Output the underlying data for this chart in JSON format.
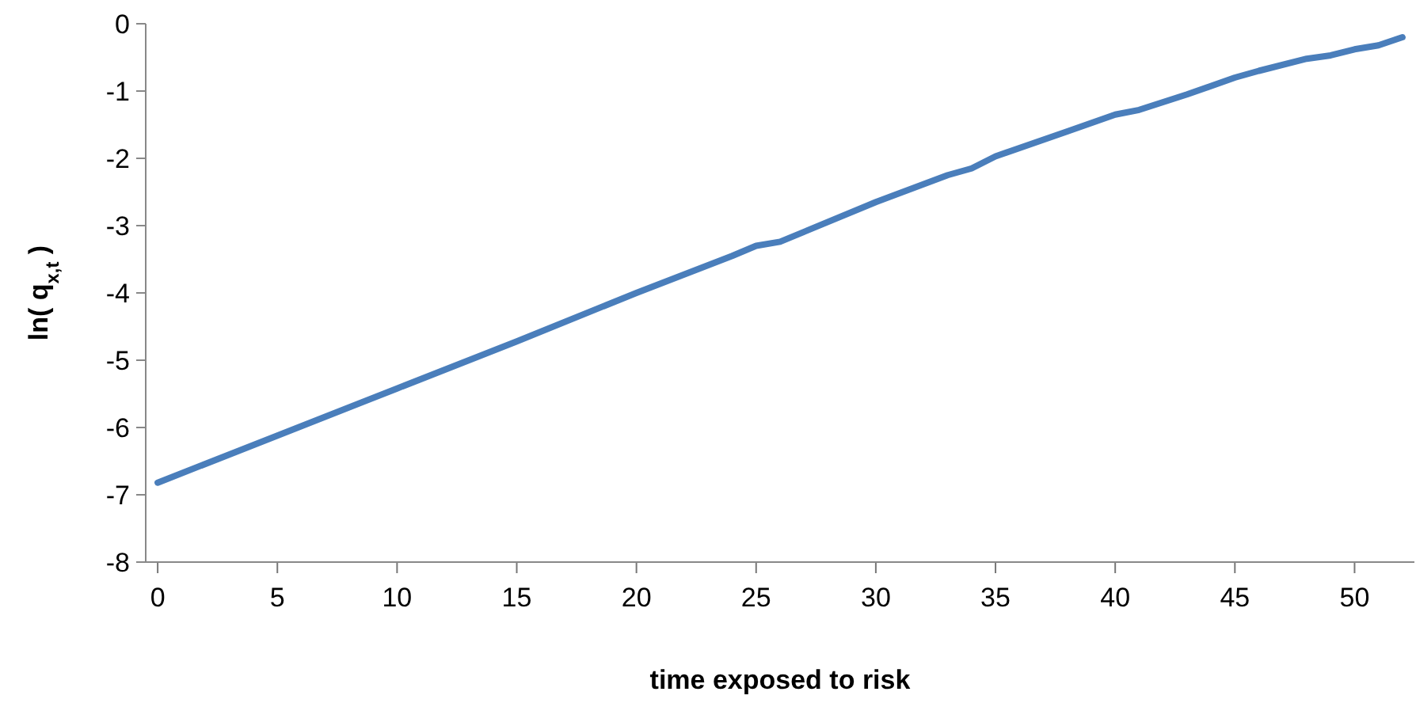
{
  "chart_data": {
    "type": "line",
    "xlabel": "time exposed to risk",
    "ylabel": "ln( q$_{x,t}$ )",
    "series": [
      {
        "color": "#4a7ebb",
        "x": [
          0,
          5,
          10,
          15,
          20,
          24,
          25,
          26,
          30,
          33,
          34,
          35,
          38,
          40,
          41,
          43,
          45,
          46,
          48,
          49,
          50,
          51,
          52
        ],
        "values": [
          -6.82,
          -6.12,
          -5.42,
          -4.72,
          -4.0,
          -3.45,
          -3.3,
          -3.24,
          -2.65,
          -2.25,
          -2.15,
          -1.97,
          -1.6,
          -1.35,
          -1.28,
          -1.05,
          -0.8,
          -0.7,
          -0.52,
          -0.47,
          -0.38,
          -0.32,
          -0.2
        ]
      }
    ],
    "xlim": [
      -0.5,
      52.5
    ],
    "xticks": [
      0,
      5,
      10,
      15,
      20,
      25,
      30,
      35,
      40,
      45,
      50
    ],
    "ylim": [
      -8,
      0
    ],
    "yticks": [
      -8,
      -7,
      -6,
      -5,
      -4,
      -3,
      -2,
      -1,
      0
    ],
    "grid": false,
    "marker": "none",
    "line_style": "solid"
  }
}
